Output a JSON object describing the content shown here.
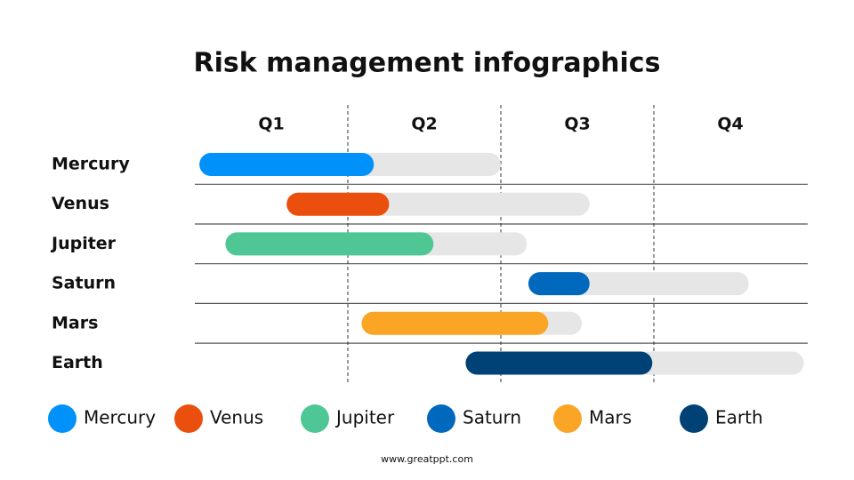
{
  "chart_data": {
    "type": "gantt",
    "title": "Risk management infographics",
    "quarters": [
      "Q1",
      "Q2",
      "Q3",
      "Q4"
    ],
    "xlim": [
      0,
      4
    ],
    "track_color": "#e6e6e6",
    "tasks": [
      {
        "name": "Mercury",
        "color": "#0091fb",
        "start": 0.03,
        "progress": 1.17,
        "end": 2.0
      },
      {
        "name": "Venus",
        "color": "#ea4f0d",
        "start": 0.6,
        "progress": 1.27,
        "end": 2.58
      },
      {
        "name": "Jupiter",
        "color": "#4fc794",
        "start": 0.2,
        "progress": 1.56,
        "end": 2.17
      },
      {
        "name": "Saturn",
        "color": "#0069be",
        "start": 2.18,
        "progress": 2.58,
        "end": 3.62
      },
      {
        "name": "Mars",
        "color": "#fba526",
        "start": 1.09,
        "progress": 2.31,
        "end": 2.53
      },
      {
        "name": "Earth",
        "color": "#004176",
        "start": 1.77,
        "progress": 2.99,
        "end": 3.98
      }
    ]
  },
  "footer": "www.greatppt.com"
}
